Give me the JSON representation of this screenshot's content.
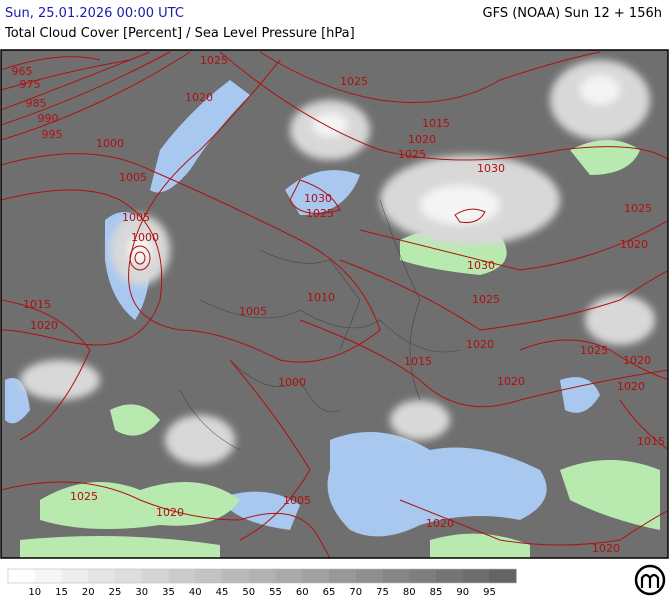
{
  "header": {
    "valid_time": "Sun, 25.01.2026 00:00 UTC",
    "model_run": "GFS (NOAA) Sun 12 + 156h",
    "subtitle": "Total Cloud Cover [Percent] / Sea Level Pressure [hPa]"
  },
  "isobar_labels": [
    "965",
    "975",
    "985",
    "990",
    "995",
    "1000",
    "1005",
    "1005",
    "1000",
    "1015",
    "1020",
    "1025",
    "1020",
    "1025",
    "1015",
    "1020",
    "1025",
    "1030",
    "1030",
    "1025",
    "1025",
    "1020",
    "1030",
    "1025",
    "1010",
    "1005",
    "1020",
    "1025",
    "1020",
    "1015",
    "1020",
    "1020",
    "1000",
    "1015",
    "1025",
    "1005",
    "1020",
    "1020",
    "1020"
  ],
  "legend": {
    "labels": [
      "10",
      "15",
      "20",
      "25",
      "30",
      "35",
      "40",
      "45",
      "50",
      "55",
      "60",
      "65",
      "70",
      "75",
      "80",
      "85",
      "90",
      "95"
    ]
  }
}
